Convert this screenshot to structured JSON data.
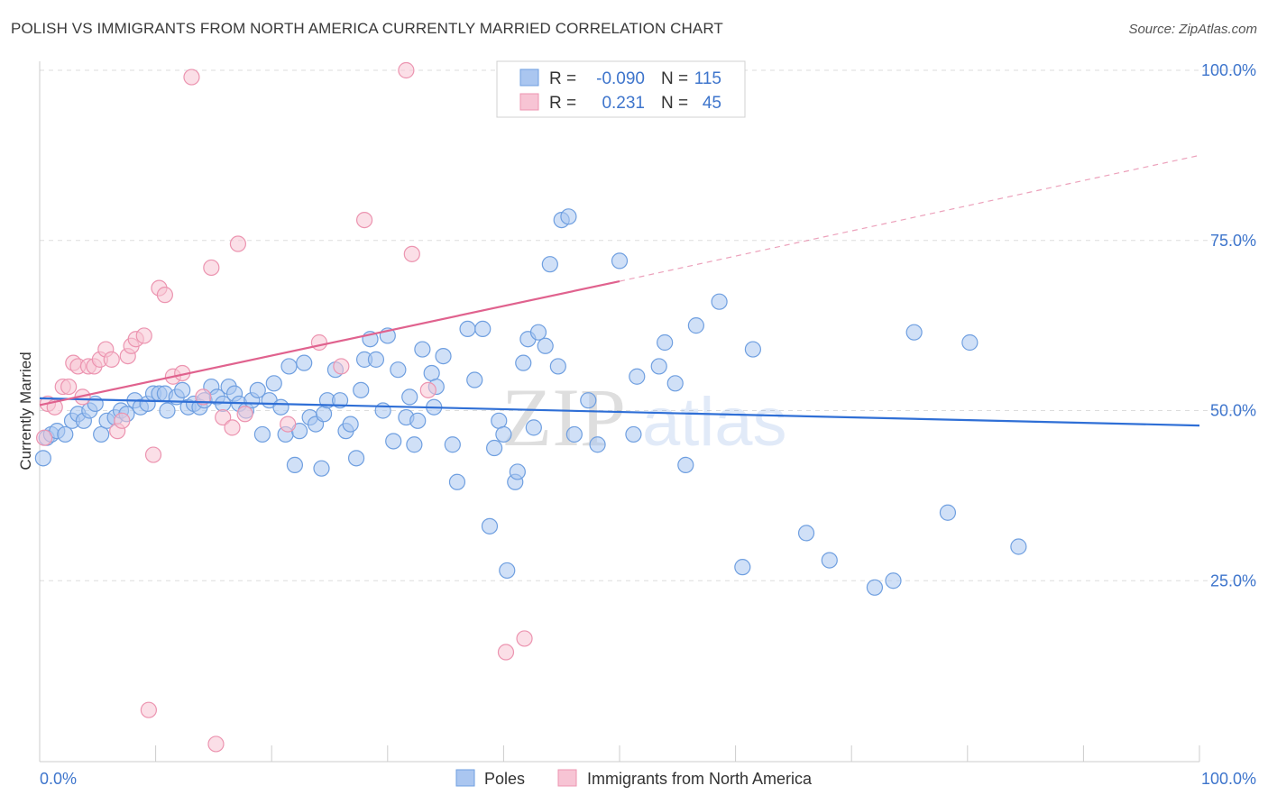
{
  "title": "POLISH VS IMMIGRANTS FROM NORTH AMERICA CURRENTLY MARRIED CORRELATION CHART",
  "source": "Source: ZipAtlas.com",
  "watermark": {
    "zip": "ZIP",
    "atlas": "atlas"
  },
  "legend_top": [
    {
      "r_label": "R =",
      "r_value": "-0.090",
      "n_label": "N =",
      "n_value": "115",
      "color": "#7aa6e6"
    },
    {
      "r_label": "R =",
      "r_value": "0.231",
      "n_label": "N =",
      "n_value": "45",
      "color": "#f0a0bc"
    }
  ],
  "legend_bottom": [
    {
      "label": "Poles",
      "color": "#7aa6e6"
    },
    {
      "label": "Immigrants from North America",
      "color": "#f0a0bc"
    }
  ],
  "colors": {
    "poles_fill": "#aac6f0",
    "poles_stroke": "#6f9fe0",
    "poles_line": "#2f6fd6",
    "imm_fill": "#f7c4d4",
    "imm_stroke": "#ec94b0",
    "imm_line": "#e0628e",
    "axis_text": "#3e75cc",
    "grid": "#dddddd"
  },
  "chart_data": {
    "type": "scatter",
    "title": "POLISH VS IMMIGRANTS FROM NORTH AMERICA CURRENTLY MARRIED CORRELATION CHART",
    "xlabel": "",
    "ylabel": "Currently Married",
    "xlim": [
      0,
      100
    ],
    "ylim": [
      0,
      100
    ],
    "x_tick_labels": [
      "0.0%",
      "100.0%"
    ],
    "y_ticks": [
      25,
      50,
      75,
      100
    ],
    "y_tick_labels": [
      "25.0%",
      "50.0%",
      "75.0%",
      "100.0%"
    ],
    "grid": true,
    "legend_position": "top-center",
    "series": [
      {
        "name": "Poles",
        "r": -0.09,
        "n": 115,
        "trend": {
          "x": [
            0,
            100
          ],
          "y": [
            51.8,
            47.8
          ]
        },
        "points": [
          [
            0.3,
            43
          ],
          [
            0.6,
            46
          ],
          [
            1,
            46.5
          ],
          [
            1.5,
            47
          ],
          [
            2.2,
            46.5
          ],
          [
            2.8,
            48.5
          ],
          [
            3.3,
            49.5
          ],
          [
            3.8,
            48.5
          ],
          [
            4.3,
            50
          ],
          [
            4.8,
            51
          ],
          [
            5.3,
            46.5
          ],
          [
            5.8,
            48.5
          ],
          [
            6.5,
            49
          ],
          [
            7,
            50
          ],
          [
            7.5,
            49.5
          ],
          [
            8.2,
            51.5
          ],
          [
            8.7,
            50.5
          ],
          [
            9.3,
            51
          ],
          [
            9.8,
            52.5
          ],
          [
            10.3,
            52.5
          ],
          [
            10.8,
            52.5
          ],
          [
            11,
            50
          ],
          [
            11.8,
            52
          ],
          [
            12.3,
            53
          ],
          [
            12.8,
            50.5
          ],
          [
            13.3,
            51
          ],
          [
            13.8,
            50.5
          ],
          [
            14.2,
            51.5
          ],
          [
            14.8,
            53.5
          ],
          [
            15.3,
            52
          ],
          [
            15.8,
            51
          ],
          [
            16.3,
            53.5
          ],
          [
            16.8,
            52.5
          ],
          [
            17.2,
            51
          ],
          [
            17.8,
            50
          ],
          [
            18.3,
            51.5
          ],
          [
            18.8,
            53
          ],
          [
            19.2,
            46.5
          ],
          [
            19.8,
            51.5
          ],
          [
            20.2,
            54
          ],
          [
            20.8,
            50.5
          ],
          [
            21.2,
            46.5
          ],
          [
            21.5,
            56.5
          ],
          [
            22,
            42
          ],
          [
            22.4,
            47
          ],
          [
            22.8,
            57
          ],
          [
            23.3,
            49
          ],
          [
            23.8,
            48
          ],
          [
            24.3,
            41.5
          ],
          [
            24.5,
            49.5
          ],
          [
            24.8,
            51.5
          ],
          [
            25.5,
            56
          ],
          [
            25.9,
            51.5
          ],
          [
            26.4,
            47
          ],
          [
            26.8,
            48
          ],
          [
            27.3,
            43
          ],
          [
            27.7,
            53
          ],
          [
            28,
            57.5
          ],
          [
            28.5,
            60.5
          ],
          [
            29,
            57.5
          ],
          [
            29.6,
            50
          ],
          [
            30,
            61
          ],
          [
            30.5,
            45.5
          ],
          [
            30.9,
            56
          ],
          [
            31.6,
            49
          ],
          [
            31.9,
            52
          ],
          [
            32.3,
            45
          ],
          [
            32.6,
            48.5
          ],
          [
            33,
            59
          ],
          [
            33.8,
            55.5
          ],
          [
            34,
            50.5
          ],
          [
            34.2,
            53.5
          ],
          [
            34.8,
            58
          ],
          [
            35.6,
            45
          ],
          [
            36,
            39.5
          ],
          [
            36.9,
            62
          ],
          [
            37.5,
            54.5
          ],
          [
            38.2,
            62
          ],
          [
            38.8,
            33
          ],
          [
            39.2,
            44.5
          ],
          [
            39.6,
            48.5
          ],
          [
            40,
            46.5
          ],
          [
            40.3,
            26.5
          ],
          [
            41,
            39.5
          ],
          [
            41.2,
            41
          ],
          [
            41.7,
            57
          ],
          [
            42.1,
            60.5
          ],
          [
            42.6,
            47.5
          ],
          [
            43,
            61.5
          ],
          [
            43.6,
            59.5
          ],
          [
            44,
            71.5
          ],
          [
            44.7,
            56.5
          ],
          [
            45,
            78
          ],
          [
            45.6,
            78.5
          ],
          [
            46.1,
            46.5
          ],
          [
            47.3,
            51.5
          ],
          [
            48.1,
            45
          ],
          [
            50,
            72
          ],
          [
            51.2,
            46.5
          ],
          [
            51.5,
            55
          ],
          [
            53.4,
            56.5
          ],
          [
            53.9,
            60
          ],
          [
            54.8,
            54
          ],
          [
            55.7,
            42
          ],
          [
            56.6,
            62.5
          ],
          [
            58.6,
            66
          ],
          [
            60.6,
            27
          ],
          [
            61.5,
            59
          ],
          [
            66.1,
            32
          ],
          [
            68.1,
            28
          ],
          [
            72,
            24
          ],
          [
            73.6,
            25
          ],
          [
            75.4,
            61.5
          ],
          [
            78.3,
            35
          ],
          [
            80.2,
            60
          ],
          [
            84.4,
            30
          ]
        ]
      },
      {
        "name": "Immigrants from North America",
        "r": 0.231,
        "n": 45,
        "trend": {
          "x": [
            0,
            50
          ],
          "y": [
            50.8,
            69
          ]
        },
        "trend_dashed": {
          "x": [
            50,
            100
          ],
          "y": [
            69,
            87.5
          ]
        },
        "points": [
          [
            0.4,
            46
          ],
          [
            0.7,
            51
          ],
          [
            1.3,
            50.5
          ],
          [
            2,
            53.5
          ],
          [
            2.5,
            53.5
          ],
          [
            2.9,
            57
          ],
          [
            3.3,
            56.5
          ],
          [
            3.7,
            52
          ],
          [
            4.2,
            56.5
          ],
          [
            4.7,
            56.5
          ],
          [
            5.2,
            57.5
          ],
          [
            5.7,
            59
          ],
          [
            6.2,
            57.5
          ],
          [
            6.7,
            47
          ],
          [
            7.1,
            48.5
          ],
          [
            7.6,
            58
          ],
          [
            7.9,
            59.5
          ],
          [
            8.3,
            60.5
          ],
          [
            9,
            61
          ],
          [
            9.4,
            6
          ],
          [
            9.8,
            43.5
          ],
          [
            10.3,
            68
          ],
          [
            10.8,
            67
          ],
          [
            11.5,
            55
          ],
          [
            12.3,
            55.5
          ],
          [
            13.1,
            99
          ],
          [
            14.1,
            52
          ],
          [
            14.8,
            71
          ],
          [
            15.2,
            1
          ],
          [
            15.8,
            49
          ],
          [
            16.6,
            47.5
          ],
          [
            17.1,
            74.5
          ],
          [
            17.7,
            49.5
          ],
          [
            21.4,
            48
          ],
          [
            24.1,
            60
          ],
          [
            26,
            56.5
          ],
          [
            28,
            78
          ],
          [
            31.6,
            100
          ],
          [
            32.1,
            73
          ],
          [
            33.5,
            53
          ],
          [
            40.2,
            14.5
          ],
          [
            41.8,
            16.5
          ],
          [
            47.2,
            100
          ],
          [
            50.2,
            100
          ]
        ]
      }
    ]
  }
}
